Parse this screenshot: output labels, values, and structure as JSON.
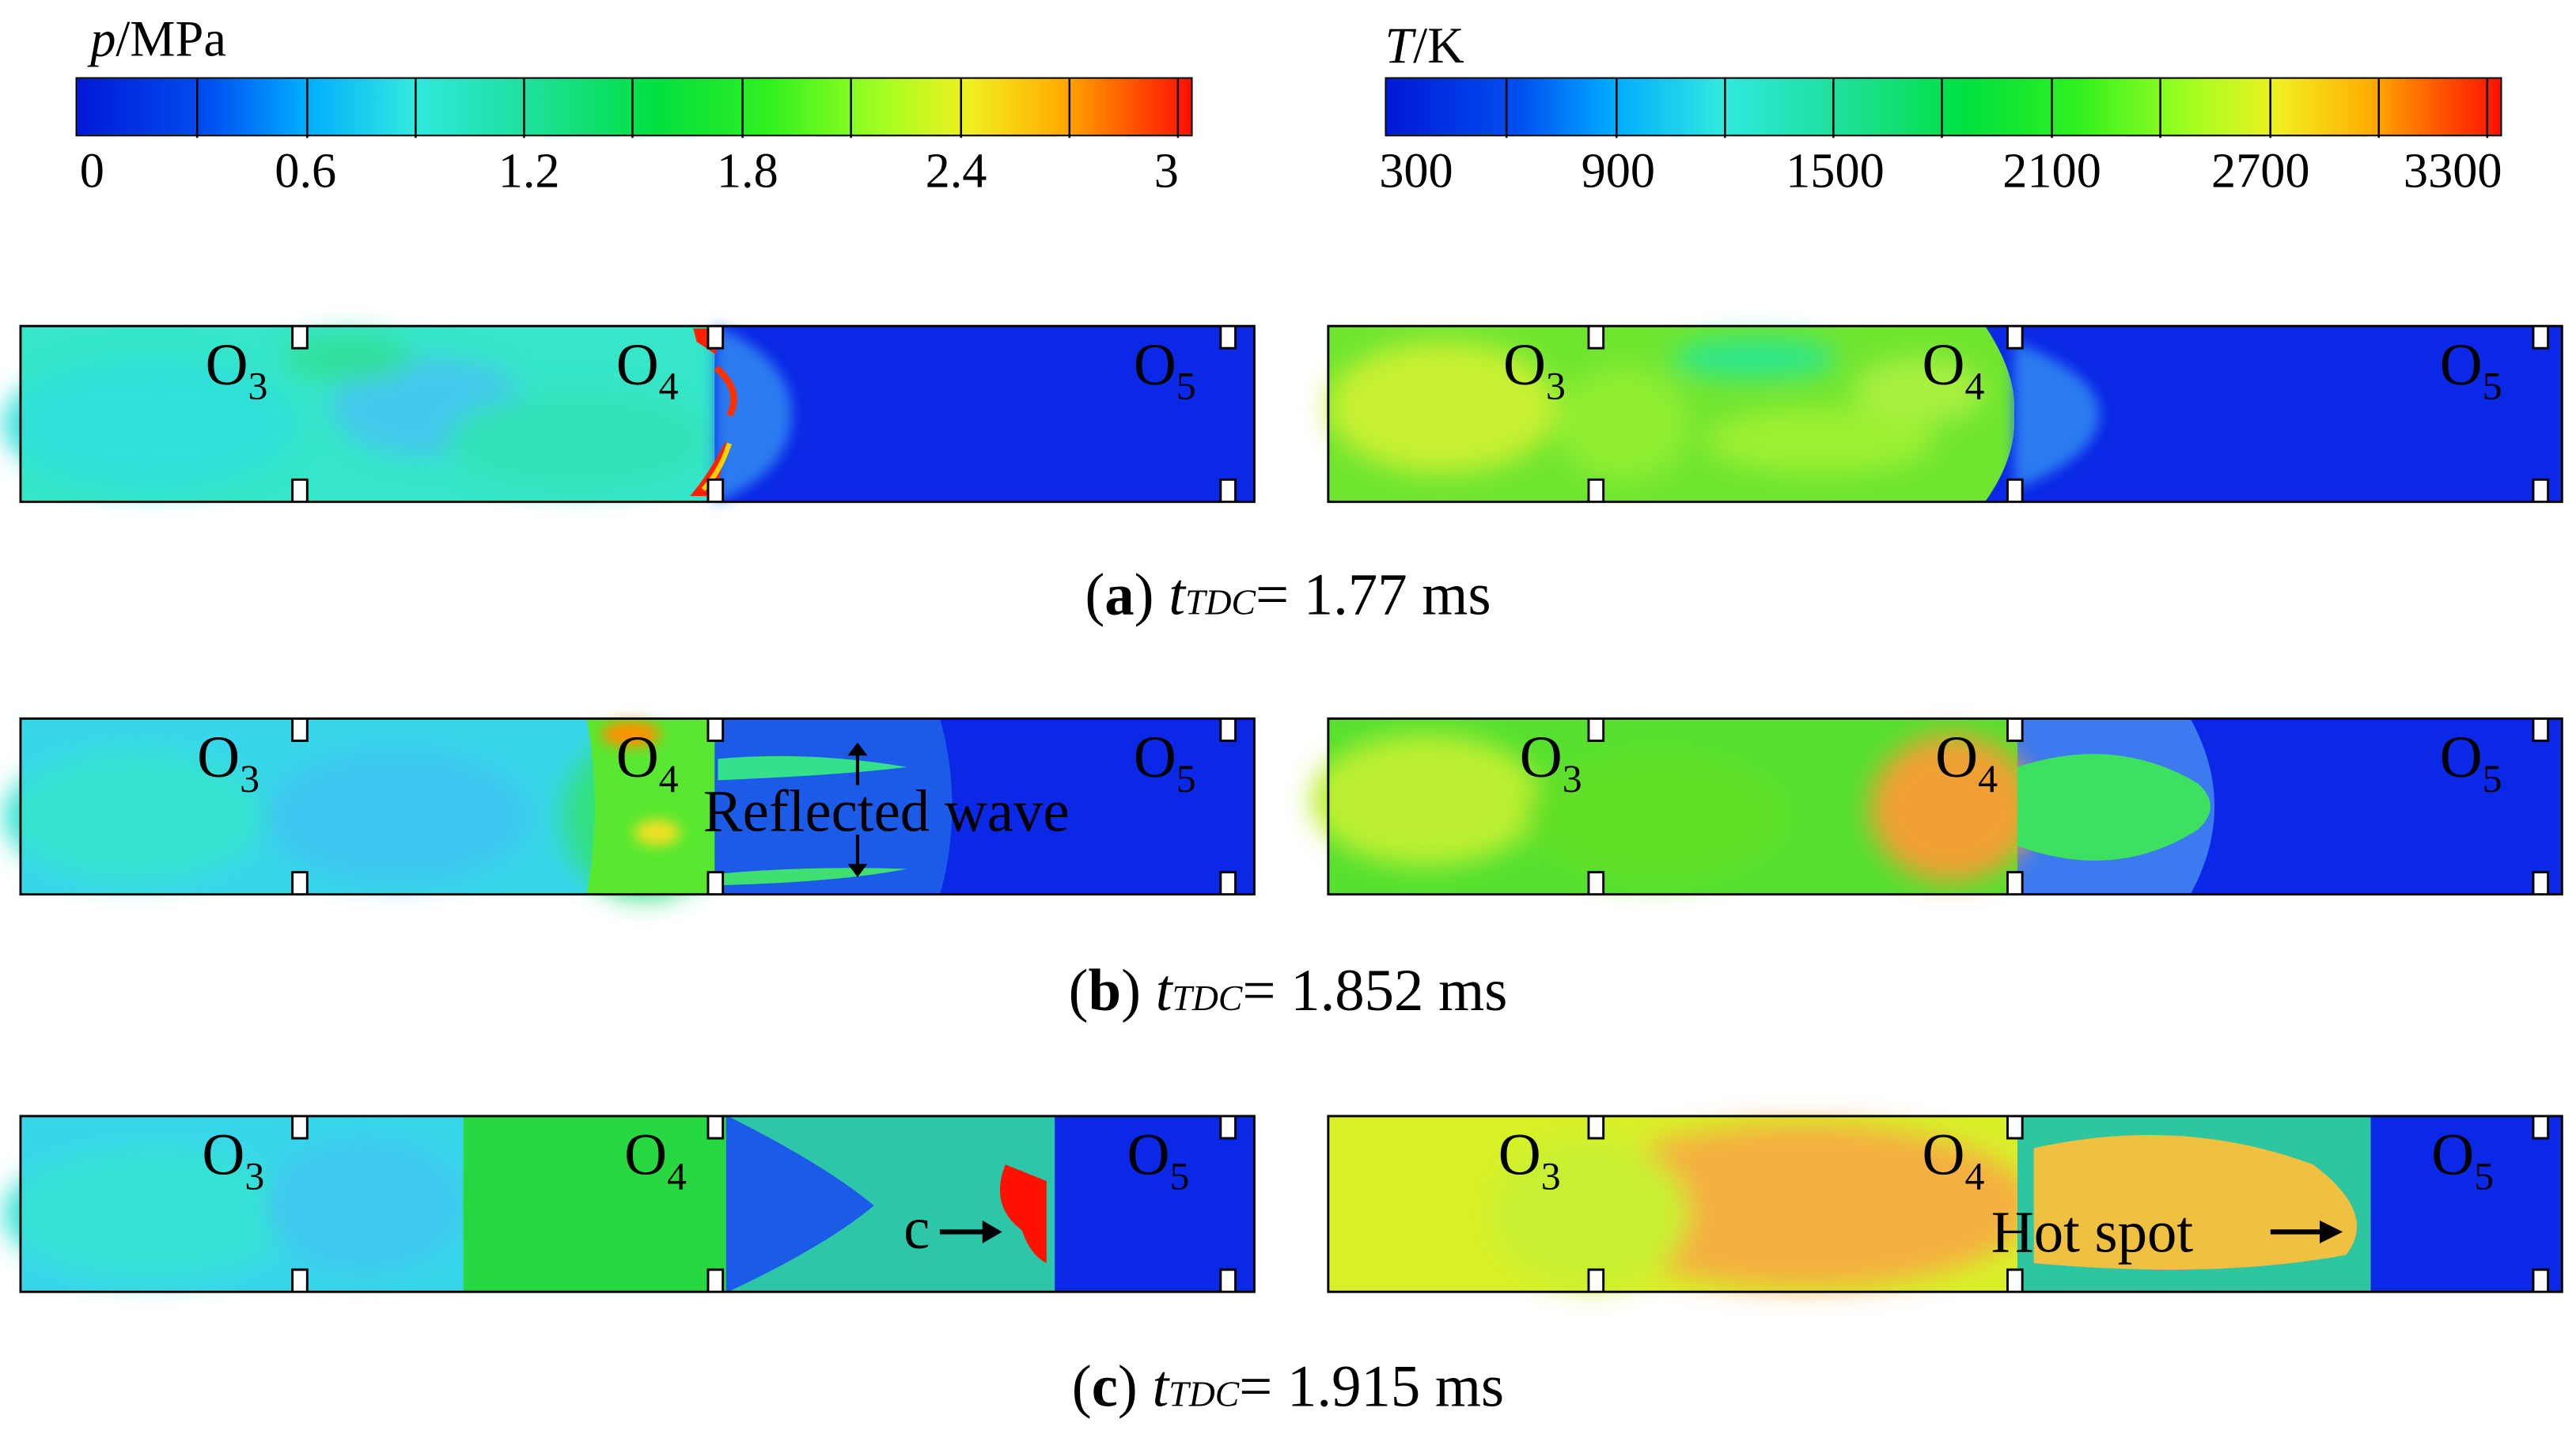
{
  "colorbars": {
    "pressure": {
      "var": "p",
      "unit": "/MPa",
      "ticks": [
        "0",
        "0.6",
        "1.2",
        "1.8",
        "2.4",
        "3"
      ],
      "range": [
        0,
        3
      ],
      "colors": [
        "#0022e0",
        "#00aaff",
        "#22e8c8",
        "#00e060",
        "#50ff20",
        "#f0f020",
        "#ff9000",
        "#ff2000"
      ]
    },
    "temperature": {
      "var": "T",
      "unit": "/K",
      "ticks": [
        "300",
        "900",
        "1500",
        "2100",
        "2700",
        "3300"
      ],
      "range": [
        300,
        3300
      ],
      "colors": [
        "#0022e0",
        "#00aaff",
        "#22e8c8",
        "#00e060",
        "#50ff20",
        "#f0f020",
        "#ff9000",
        "#ff2000"
      ]
    }
  },
  "orifice_labels": {
    "o3": {
      "base": "O",
      "sub": "3"
    },
    "o4": {
      "base": "O",
      "sub": "4"
    },
    "o5": {
      "base": "O",
      "sub": "5"
    }
  },
  "rows": [
    {
      "caption": {
        "letter": "a",
        "t": "t",
        "sub": "TDC",
        "value": "= 1.77 ms"
      }
    },
    {
      "caption": {
        "letter": "b",
        "t": "t",
        "sub": "TDC",
        "value": "= 1.852 ms"
      },
      "annotation": "Reflected wave"
    },
    {
      "caption": {
        "letter": "c",
        "t": "t",
        "sub": "TDC",
        "value": "= 1.915 ms"
      },
      "annotation_left": "c",
      "annotation_right": "Hot spot"
    }
  ]
}
